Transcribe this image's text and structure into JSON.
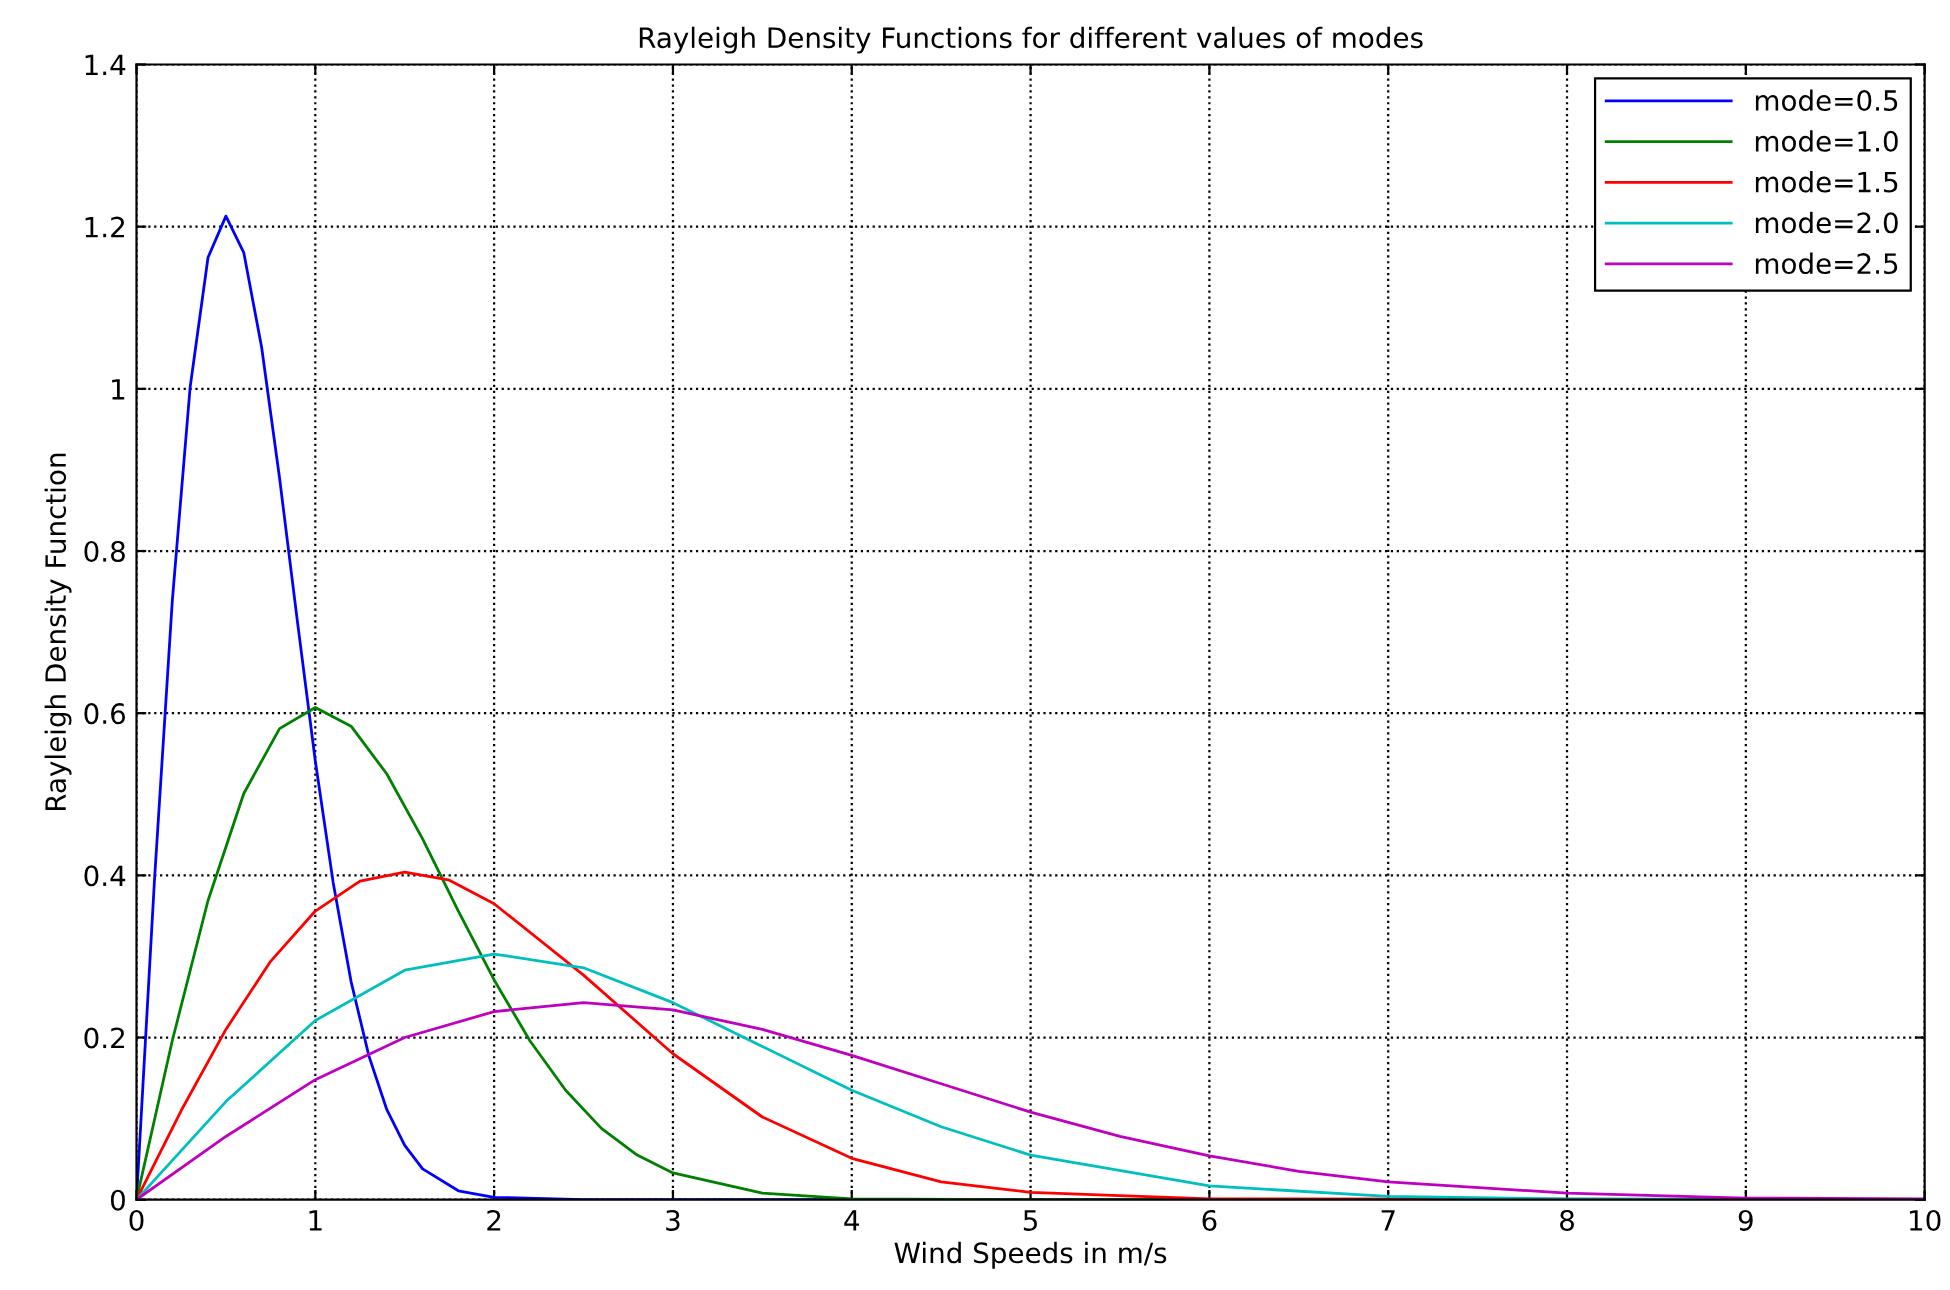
{
  "chart_data": {
    "type": "line",
    "title": "Rayleigh Density Functions for different values of modes",
    "xlabel": "Wind Speeds in m/s",
    "ylabel": "Rayleigh Density Function",
    "xlim": [
      0,
      10
    ],
    "ylim": [
      0,
      1.4
    ],
    "xticks": [
      0,
      1,
      2,
      3,
      4,
      5,
      6,
      7,
      8,
      9,
      10
    ],
    "yticks": [
      0,
      0.2,
      0.4,
      0.6,
      0.8,
      1,
      1.2,
      1.4
    ],
    "grid": true,
    "legend": "top right",
    "line_style": "solid",
    "marker": "none",
    "series": [
      {
        "name": "mode=0.5",
        "color": "#0000ff",
        "x": [
          0,
          0.1,
          0.2,
          0.3,
          0.4,
          0.5,
          0.6,
          0.7,
          0.8,
          0.9,
          1.0,
          1.1,
          1.2,
          1.3,
          1.4,
          1.5,
          1.6,
          1.8,
          2.0,
          2.5,
          10
        ],
        "values": [
          0,
          0.392,
          0.738,
          1.002,
          1.162,
          1.213,
          1.168,
          1.051,
          0.89,
          0.713,
          0.541,
          0.391,
          0.269,
          0.177,
          0.111,
          0.067,
          0.038,
          0.011,
          0.003,
          0,
          0
        ]
      },
      {
        "name": "mode=1.0",
        "color": "#008000",
        "x": [
          0,
          0.2,
          0.4,
          0.6,
          0.8,
          1.0,
          1.2,
          1.4,
          1.6,
          1.8,
          2.0,
          2.2,
          2.4,
          2.6,
          2.8,
          3.0,
          3.5,
          4,
          5,
          10
        ],
        "values": [
          0,
          0.196,
          0.369,
          0.501,
          0.581,
          0.607,
          0.584,
          0.525,
          0.445,
          0.356,
          0.271,
          0.196,
          0.135,
          0.088,
          0.055,
          0.033,
          0.008,
          0.001,
          0,
          0
        ]
      },
      {
        "name": "mode=1.5",
        "color": "#ff0000",
        "x": [
          0,
          0.25,
          0.5,
          0.75,
          1.0,
          1.25,
          1.5,
          1.75,
          2.0,
          2.5,
          3.0,
          3.5,
          4.0,
          4.5,
          5,
          6,
          10
        ],
        "values": [
          0,
          0.11,
          0.21,
          0.294,
          0.356,
          0.393,
          0.404,
          0.394,
          0.365,
          0.277,
          0.18,
          0.102,
          0.051,
          0.022,
          0.009,
          0.001,
          0
        ]
      },
      {
        "name": "mode=2.0",
        "color": "#00bfbf",
        "x": [
          0,
          0.5,
          1,
          1.5,
          2,
          2.5,
          3,
          3.5,
          4,
          4.5,
          5,
          6,
          7,
          8,
          10
        ],
        "values": [
          0,
          0.121,
          0.221,
          0.283,
          0.303,
          0.286,
          0.243,
          0.189,
          0.135,
          0.09,
          0.055,
          0.017,
          0.004,
          0.001,
          0
        ]
      },
      {
        "name": "mode=2.5",
        "color": "#bf00bf",
        "x": [
          0,
          0.5,
          1,
          1.5,
          2,
          2.5,
          3,
          3.5,
          4,
          4.5,
          5,
          5.5,
          6,
          6.5,
          7,
          8,
          9,
          10
        ],
        "values": [
          0,
          0.078,
          0.148,
          0.2,
          0.232,
          0.243,
          0.234,
          0.21,
          0.178,
          0.143,
          0.108,
          0.078,
          0.054,
          0.035,
          0.022,
          0.008,
          0.002,
          0.001
        ]
      }
    ]
  }
}
